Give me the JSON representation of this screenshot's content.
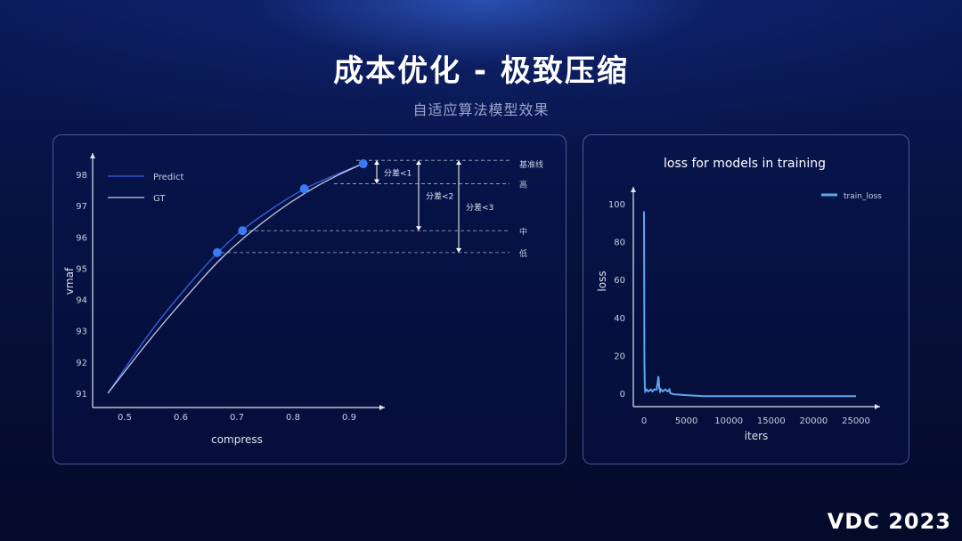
{
  "title": "成本优化 - 极致压缩",
  "subtitle": "自适应算法模型效果",
  "logo": "VDC 2023",
  "chart_data": [
    {
      "type": "line",
      "title": "",
      "xlabel": "compress",
      "ylabel": "vmaf",
      "xticks": [
        "0.5",
        "0.6",
        "0.7",
        "0.8",
        "0.9"
      ],
      "yticks": [
        "91",
        "92",
        "93",
        "94",
        "95",
        "96",
        "97",
        "98"
      ],
      "xlim": [
        0.43,
        0.98
      ],
      "ylim": [
        90.6,
        98.7
      ],
      "series": [
        {
          "name": "Predict",
          "color": "#3a62e8",
          "x": [
            0.47,
            0.55,
            0.62,
            0.665,
            0.71,
            0.77,
            0.82,
            0.87,
            0.925
          ],
          "y": [
            91.0,
            93.1,
            94.6,
            95.5,
            96.25,
            97.0,
            97.55,
            97.95,
            98.35
          ]
        },
        {
          "name": "GT",
          "color": "#c8cce0",
          "x": [
            0.47,
            0.55,
            0.62,
            0.67,
            0.72,
            0.77,
            0.82,
            0.87,
            0.925
          ],
          "y": [
            91.0,
            92.85,
            94.3,
            95.3,
            96.1,
            96.8,
            97.4,
            97.9,
            98.35
          ]
        }
      ],
      "points": [
        {
          "x": 0.665,
          "y": 95.5
        },
        {
          "x": 0.71,
          "y": 96.2
        },
        {
          "x": 0.82,
          "y": 97.54
        },
        {
          "x": 0.925,
          "y": 98.34
        }
      ],
      "levels": [
        {
          "label": "基准线",
          "y": 98.45
        },
        {
          "label": "高",
          "y": 97.7
        },
        {
          "label": "中",
          "y": 96.2
        },
        {
          "label": "低",
          "y": 95.5
        }
      ],
      "annotations": [
        "分差<1",
        "分差<2",
        "分差<3"
      ]
    },
    {
      "type": "line",
      "title": "loss for models in training",
      "xlabel": "iters",
      "ylabel": "loss",
      "xticks": [
        "0",
        "5000",
        "10000",
        "15000",
        "20000",
        "25000"
      ],
      "yticks": [
        "0",
        "20",
        "40",
        "60",
        "80",
        "100"
      ],
      "xlim": [
        -1000,
        27000
      ],
      "ylim": [
        -6,
        108
      ],
      "legend": "top-right",
      "series": [
        {
          "name": "train_loss",
          "color": "#5ea8f0",
          "x": [
            0,
            50,
            100,
            150,
            300,
            500,
            800,
            1000,
            1200,
            1500,
            1700,
            1800,
            1900,
            2000,
            2200,
            2500,
            2800,
            3000,
            3100,
            3500,
            5000,
            7000,
            10000,
            15000,
            20000,
            25000
          ],
          "y": [
            96,
            16,
            3,
            1,
            2,
            1,
            2,
            1,
            2,
            2,
            9,
            3,
            1,
            2,
            1,
            2,
            1,
            2,
            0,
            -0.5,
            -1,
            -1.5,
            -1.5,
            -1.5,
            -1.5,
            -1.5
          ]
        }
      ]
    }
  ]
}
